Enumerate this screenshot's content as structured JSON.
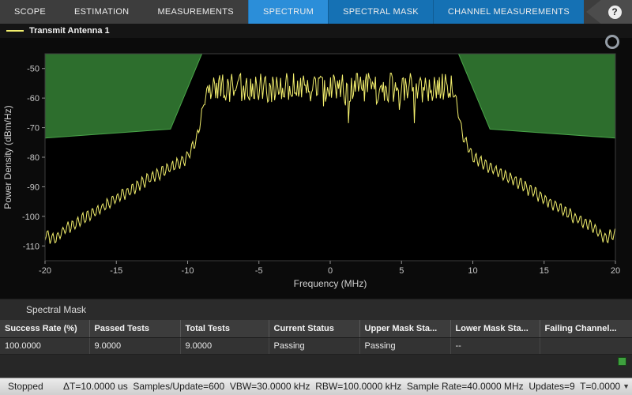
{
  "toolbar": {
    "tabs": [
      {
        "label": "SCOPE"
      },
      {
        "label": "ESTIMATION"
      },
      {
        "label": "MEASUREMENTS"
      },
      {
        "label": "SPECTRUM"
      },
      {
        "label": "SPECTRAL MASK"
      },
      {
        "label": "CHANNEL MEASUREMENTS"
      }
    ],
    "active_tab": "SPECTRUM",
    "help_label": "?"
  },
  "colors": {
    "contextual_tab_blue": "#1571b4",
    "active_tab_blue": "#2b8ed9",
    "trace_yellow": "#f3ef6d",
    "mask_green": "#2d6e2d"
  },
  "legend": {
    "items": [
      {
        "label": "Transmit Antenna 1",
        "color": "#f3ef6d"
      }
    ]
  },
  "chart_data": {
    "type": "line",
    "title": "",
    "xlabel": "Frequency (MHz)",
    "ylabel": "Power Density (dBm/Hz)",
    "xlim": [
      -20,
      20
    ],
    "ylim": [
      -115,
      -45
    ],
    "xticks": [
      -20,
      -15,
      -10,
      -5,
      0,
      5,
      10,
      15,
      20
    ],
    "yticks": [
      -50,
      -60,
      -70,
      -80,
      -90,
      -100,
      -110
    ],
    "grid": false,
    "background": "#000000",
    "series": [
      {
        "name": "Transmit Antenna 1",
        "color": "#f3ef6d",
        "style": "noisy-spectrum",
        "envelope": [
          [
            -20,
            -106
          ],
          [
            -19.4,
            -108
          ],
          [
            -18.5,
            -104
          ],
          [
            -17,
            -100
          ],
          [
            -15,
            -94
          ],
          [
            -13,
            -88
          ],
          [
            -11,
            -83
          ],
          [
            -10,
            -80
          ],
          [
            -9.4,
            -74
          ],
          [
            -9.05,
            -67
          ],
          [
            -8.8,
            -60
          ],
          [
            -8.5,
            -56.5
          ],
          [
            8.5,
            -56.5
          ],
          [
            8.8,
            -60
          ],
          [
            9.05,
            -67
          ],
          [
            9.4,
            -74
          ],
          [
            10,
            -80
          ],
          [
            11,
            -83
          ],
          [
            13,
            -88
          ],
          [
            15,
            -94
          ],
          [
            17,
            -100
          ],
          [
            18.5,
            -104
          ],
          [
            19.2,
            -107
          ],
          [
            20,
            -106.5
          ]
        ],
        "inband_edge_mhz": 8.5,
        "inband_mean_dbmhz": -57,
        "inband_jitter_db": 5,
        "inband_peak_dbmhz": -51,
        "oob_ripple_db": 1.8
      }
    ],
    "mask": {
      "name": "upper-spectral-mask",
      "fill_color": "#2d6e2d",
      "edge_color": "#49a449",
      "boundary": [
        [
          -20,
          -73.5
        ],
        [
          -11.2,
          -70.5
        ],
        [
          -9.0,
          -45
        ],
        [
          9.0,
          -45
        ],
        [
          11.2,
          -70.5
        ],
        [
          20,
          -73.5
        ]
      ]
    }
  },
  "mask_panel": {
    "title": "Spectral Mask",
    "table": {
      "columns": [
        "Success Rate (%)",
        "Passed Tests",
        "Total Tests",
        "Current Status",
        "Upper Mask Sta...",
        "Lower Mask Sta...",
        "Failing Channel..."
      ],
      "rows": [
        [
          "100.0000",
          "9.0000",
          "9.0000",
          "Passing",
          "Passing",
          "--",
          ""
        ]
      ]
    }
  },
  "status_bar": {
    "state": "Stopped",
    "info": "ΔT=10.0000 us  Samples/Update=600  VBW=30.0000 kHz  RBW=100.0000 kHz  Sample Rate=40.0000 MHz  Updates=9  T=0.0000",
    "expand_icon": "▼"
  }
}
